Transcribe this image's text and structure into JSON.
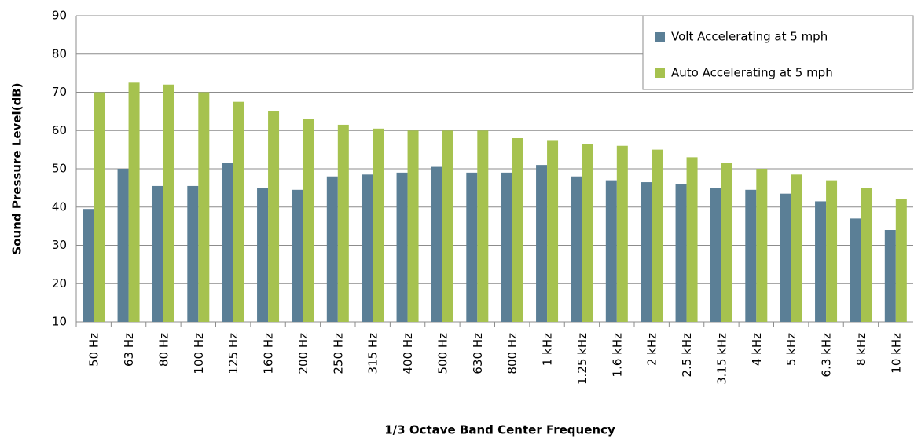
{
  "chart_data": {
    "type": "bar",
    "x_label": "1/3 Octave Band Center Frequency",
    "y_label": "Sound Pressure Level(dB)",
    "categories": [
      "50 Hz",
      "63 Hz",
      "80 Hz",
      "100 Hz",
      "125 Hz",
      "160 Hz",
      "200 Hz",
      "250 Hz",
      "315 Hz",
      "400 Hz",
      "500 Hz",
      "630 Hz",
      "800 Hz",
      "1 kHz",
      "1.25 kHz",
      "1.6 kHz",
      "2 kHz",
      "2.5 kHz",
      "3.15 kHz",
      "4 kHz",
      "5 kHz",
      "6.3 kHz",
      "8 kHz",
      "10 kHz"
    ],
    "series": [
      {
        "name": "Volt Accelerating at 5 mph",
        "color": "#5b7f96",
        "values": [
          39.5,
          50,
          45.5,
          45.5,
          51.5,
          45,
          44.5,
          48,
          48.5,
          49,
          50.5,
          49,
          49,
          51,
          48,
          47,
          46.5,
          46,
          45,
          44.5,
          43.5,
          41.5,
          37,
          34
        ]
      },
      {
        "name": "Auto Accelerating at 5 mph",
        "color": "#a6c24f",
        "values": [
          70,
          72.5,
          72,
          70,
          67.5,
          65,
          63,
          61.5,
          60.5,
          60,
          60,
          60,
          58,
          57.5,
          56.5,
          56,
          55,
          53,
          51.5,
          50,
          48.5,
          47,
          45,
          42
        ]
      }
    ],
    "ylim": [
      10,
      90
    ],
    "yticks": [
      10,
      20,
      30,
      40,
      50,
      60,
      70,
      80,
      90
    ],
    "grid": true,
    "legend": "top-right"
  }
}
